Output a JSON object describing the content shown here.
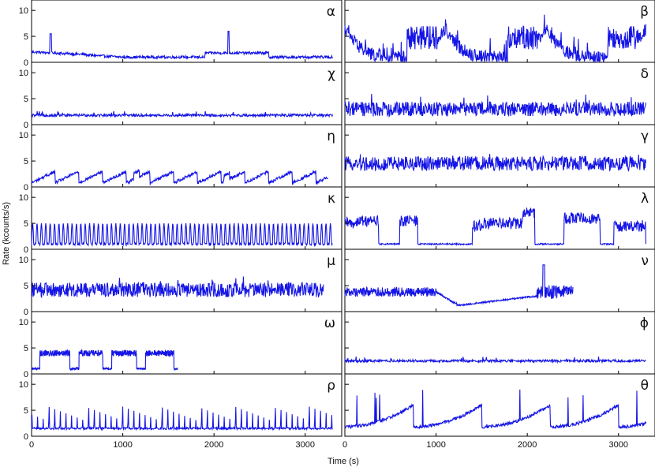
{
  "figure": {
    "ylabel": "Rate (kcounts/s)",
    "xlabel": "Time (s)",
    "series_color": "#1515e6"
  },
  "chart_data": [
    {
      "type": "line",
      "label": "α",
      "column": "left",
      "row": 0,
      "xlim": [
        0,
        3400
      ],
      "ylim": [
        0,
        12
      ],
      "ytick_labels": [
        "0",
        "5",
        "10"
      ],
      "yticks": [
        0,
        5,
        10
      ],
      "duration": 3300,
      "pattern": "alpha",
      "base": 1.5
    },
    {
      "type": "line",
      "label": "β",
      "column": "right",
      "row": 0,
      "xlim": [
        0,
        3400
      ],
      "ylim": [
        0,
        12
      ],
      "ytick_labels": [
        "0",
        "5",
        "10"
      ],
      "yticks": [
        0,
        5,
        10
      ],
      "duration": 3300,
      "pattern": "beta",
      "base": 3.0
    },
    {
      "type": "line",
      "label": "χ",
      "column": "left",
      "row": 1,
      "xlim": [
        0,
        3400
      ],
      "ylim": [
        0,
        12
      ],
      "ytick_labels": [
        "0",
        "5",
        "10"
      ],
      "yticks": [
        0,
        5,
        10
      ],
      "duration": 3300,
      "pattern": "flat",
      "base": 1.8
    },
    {
      "type": "line",
      "label": "δ",
      "column": "right",
      "row": 1,
      "xlim": [
        0,
        3400
      ],
      "ylim": [
        0,
        12
      ],
      "ytick_labels": [
        "0",
        "5",
        "10"
      ],
      "yticks": [
        0,
        5,
        10
      ],
      "duration": 3300,
      "pattern": "noisy",
      "base": 3.0
    },
    {
      "type": "line",
      "label": "η",
      "column": "left",
      "row": 2,
      "xlim": [
        0,
        3400
      ],
      "ylim": [
        0,
        12
      ],
      "ytick_labels": [
        "0",
        "5",
        "10"
      ],
      "yticks": [
        0,
        5,
        10
      ],
      "duration": 3250,
      "pattern": "sawtooth",
      "base": 1.0
    },
    {
      "type": "line",
      "label": "γ",
      "column": "right",
      "row": 2,
      "xlim": [
        0,
        3400
      ],
      "ylim": [
        0,
        12
      ],
      "ytick_labels": [
        "0",
        "5",
        "10"
      ],
      "yticks": [
        0,
        5,
        10
      ],
      "duration": 3300,
      "pattern": "noisy",
      "base": 4.5
    },
    {
      "type": "line",
      "label": "κ",
      "column": "left",
      "row": 3,
      "xlim": [
        0,
        3400
      ],
      "ylim": [
        0,
        12
      ],
      "ytick_labels": [
        "0",
        "5",
        "10"
      ],
      "yticks": [
        0,
        5,
        10
      ],
      "duration": 3300,
      "pattern": "oscillation",
      "base": 3.0
    },
    {
      "type": "line",
      "label": "λ",
      "column": "right",
      "row": 3,
      "xlim": [
        0,
        3400
      ],
      "ylim": [
        0,
        12
      ],
      "ytick_labels": [
        "0",
        "5",
        "10"
      ],
      "yticks": [
        0,
        5,
        10
      ],
      "duration": 3300,
      "pattern": "lambda",
      "base": 1.0
    },
    {
      "type": "line",
      "label": "μ",
      "column": "left",
      "row": 4,
      "xlim": [
        0,
        3400
      ],
      "ylim": [
        0,
        12
      ],
      "ytick_labels": [
        "0",
        "5",
        "10"
      ],
      "yticks": [
        0,
        5,
        10
      ],
      "duration": 3200,
      "pattern": "noisy",
      "base": 4.2
    },
    {
      "type": "line",
      "label": "ν",
      "column": "right",
      "row": 4,
      "xlim": [
        0,
        3400
      ],
      "ylim": [
        0,
        12
      ],
      "ytick_labels": [
        "0",
        "5",
        "10"
      ],
      "yticks": [
        0,
        5,
        10
      ],
      "duration": 2500,
      "pattern": "nu",
      "base": 4.0
    },
    {
      "type": "line",
      "label": "ω",
      "column": "left",
      "row": 5,
      "xlim": [
        0,
        3400
      ],
      "ylim": [
        0,
        12
      ],
      "ytick_labels": [
        "0",
        "5",
        "10"
      ],
      "yticks": [
        0,
        5,
        10
      ],
      "duration": 1600,
      "pattern": "omega",
      "base": 4.0
    },
    {
      "type": "line",
      "label": "ϕ",
      "column": "right",
      "row": 5,
      "xlim": [
        0,
        3400
      ],
      "ylim": [
        0,
        12
      ],
      "ytick_labels": [
        "0",
        "5",
        "10"
      ],
      "yticks": [
        0,
        5,
        10
      ],
      "duration": 3300,
      "pattern": "flat",
      "base": 2.5
    },
    {
      "type": "line",
      "label": "ρ",
      "column": "left",
      "row": 6,
      "xlim": [
        0,
        3400
      ],
      "ylim": [
        0,
        12
      ],
      "ytick_labels": [
        "0",
        "5",
        "10"
      ],
      "yticks": [
        0,
        5,
        10
      ],
      "xticks": [
        0,
        1000,
        2000,
        3000
      ],
      "xtick_labels": [
        "0",
        "1000",
        "2000",
        "3000"
      ],
      "duration": 3300,
      "pattern": "rho",
      "base": 2.0
    },
    {
      "type": "line",
      "label": "θ",
      "column": "right",
      "row": 6,
      "xlim": [
        0,
        3400
      ],
      "ylim": [
        0,
        12
      ],
      "ytick_labels": [
        "0",
        "5",
        "10"
      ],
      "yticks": [
        0,
        5,
        10
      ],
      "xticks": [
        0,
        1000,
        2000,
        3000
      ],
      "xtick_labels": [
        "0",
        "1000",
        "2000",
        "3000"
      ],
      "duration": 3300,
      "pattern": "theta",
      "base": 2.0
    }
  ]
}
